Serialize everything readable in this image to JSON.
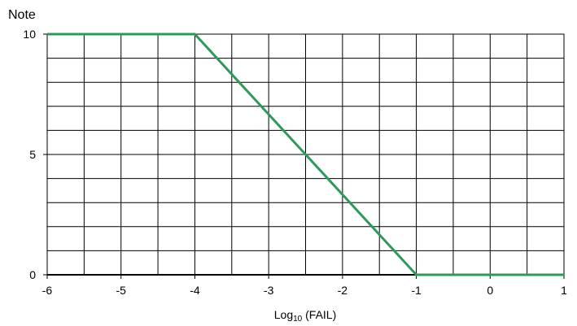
{
  "chart_data": {
    "type": "line",
    "title": "",
    "ylabel": "Note",
    "xlabel_main": "Log",
    "xlabel_sub": "10",
    "xlabel_rest": " (FAIL)",
    "xlim": [
      -6,
      1
    ],
    "ylim": [
      0,
      10
    ],
    "x_ticks": [
      -6,
      -5,
      -4,
      -3,
      -2,
      -1,
      0,
      1
    ],
    "y_ticks": [
      0,
      5,
      10
    ],
    "x_ticks_labels": [
      "-6",
      "-5",
      "-4",
      "-3",
      "-2",
      "-1",
      "0",
      "1"
    ],
    "y_ticks_labels": [
      "0",
      "5",
      "10"
    ],
    "x_gridlines": [
      -6,
      -5.5,
      -5,
      -4.5,
      -4,
      -3.5,
      -3,
      -2.5,
      -2,
      -1.5,
      -1,
      -0.5,
      0,
      0.5,
      1
    ],
    "y_gridlines": [
      0,
      1,
      2,
      3,
      4,
      5,
      6,
      7,
      8,
      9,
      10
    ],
    "grid": true,
    "series": [
      {
        "color": "#2e9a5a",
        "x": [
          -6,
          -4,
          -1,
          1
        ],
        "y": [
          10,
          10,
          0,
          0
        ]
      }
    ]
  }
}
